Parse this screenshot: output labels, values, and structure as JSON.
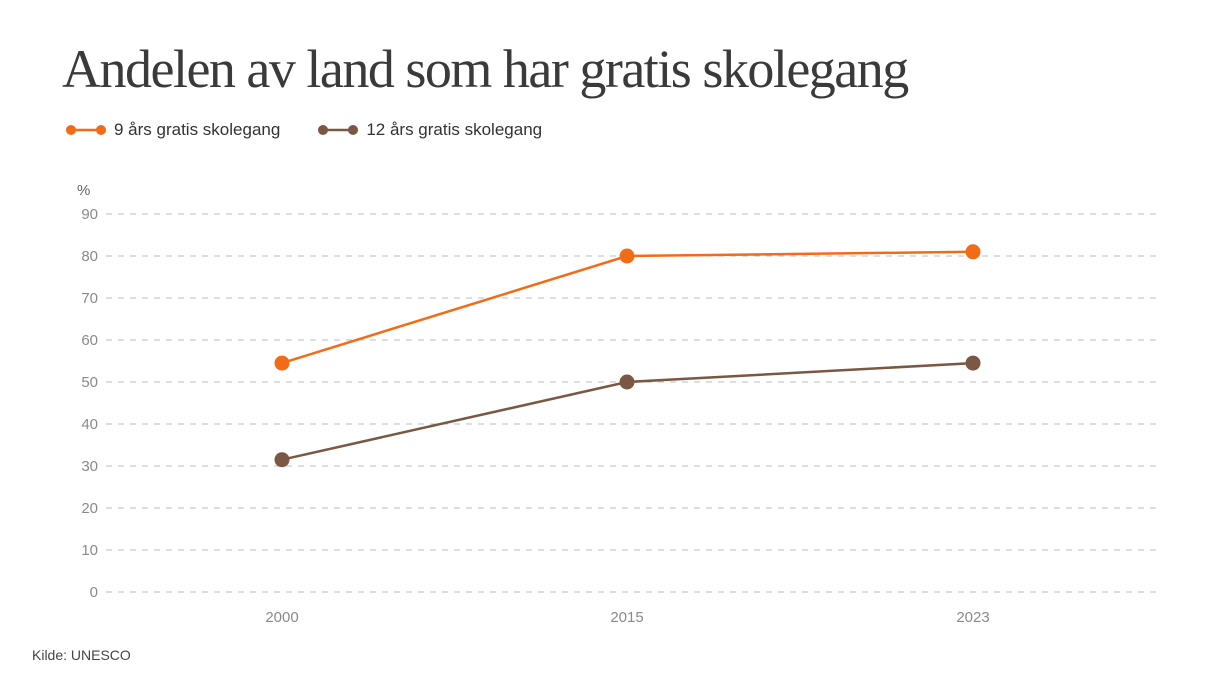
{
  "chart_data": {
    "type": "line",
    "title": "Andelen av land som har gratis skolegang",
    "ylabel": "%",
    "xlabel": "",
    "categories": [
      "2000",
      "2015",
      "2023"
    ],
    "yticks": [
      "0",
      "10",
      "20",
      "30",
      "40",
      "50",
      "60",
      "70",
      "80",
      "90"
    ],
    "ylim": [
      0,
      90
    ],
    "grid": true,
    "legend_position": "top-left",
    "series": [
      {
        "name": "9 års gratis skolegang",
        "color": "#f26c18",
        "values": [
          54.5,
          80,
          81
        ]
      },
      {
        "name": "12 års gratis skolegang",
        "color": "#7a5843",
        "values": [
          31.5,
          50,
          54.5
        ]
      }
    ],
    "source": "Kilde: UNESCO"
  }
}
